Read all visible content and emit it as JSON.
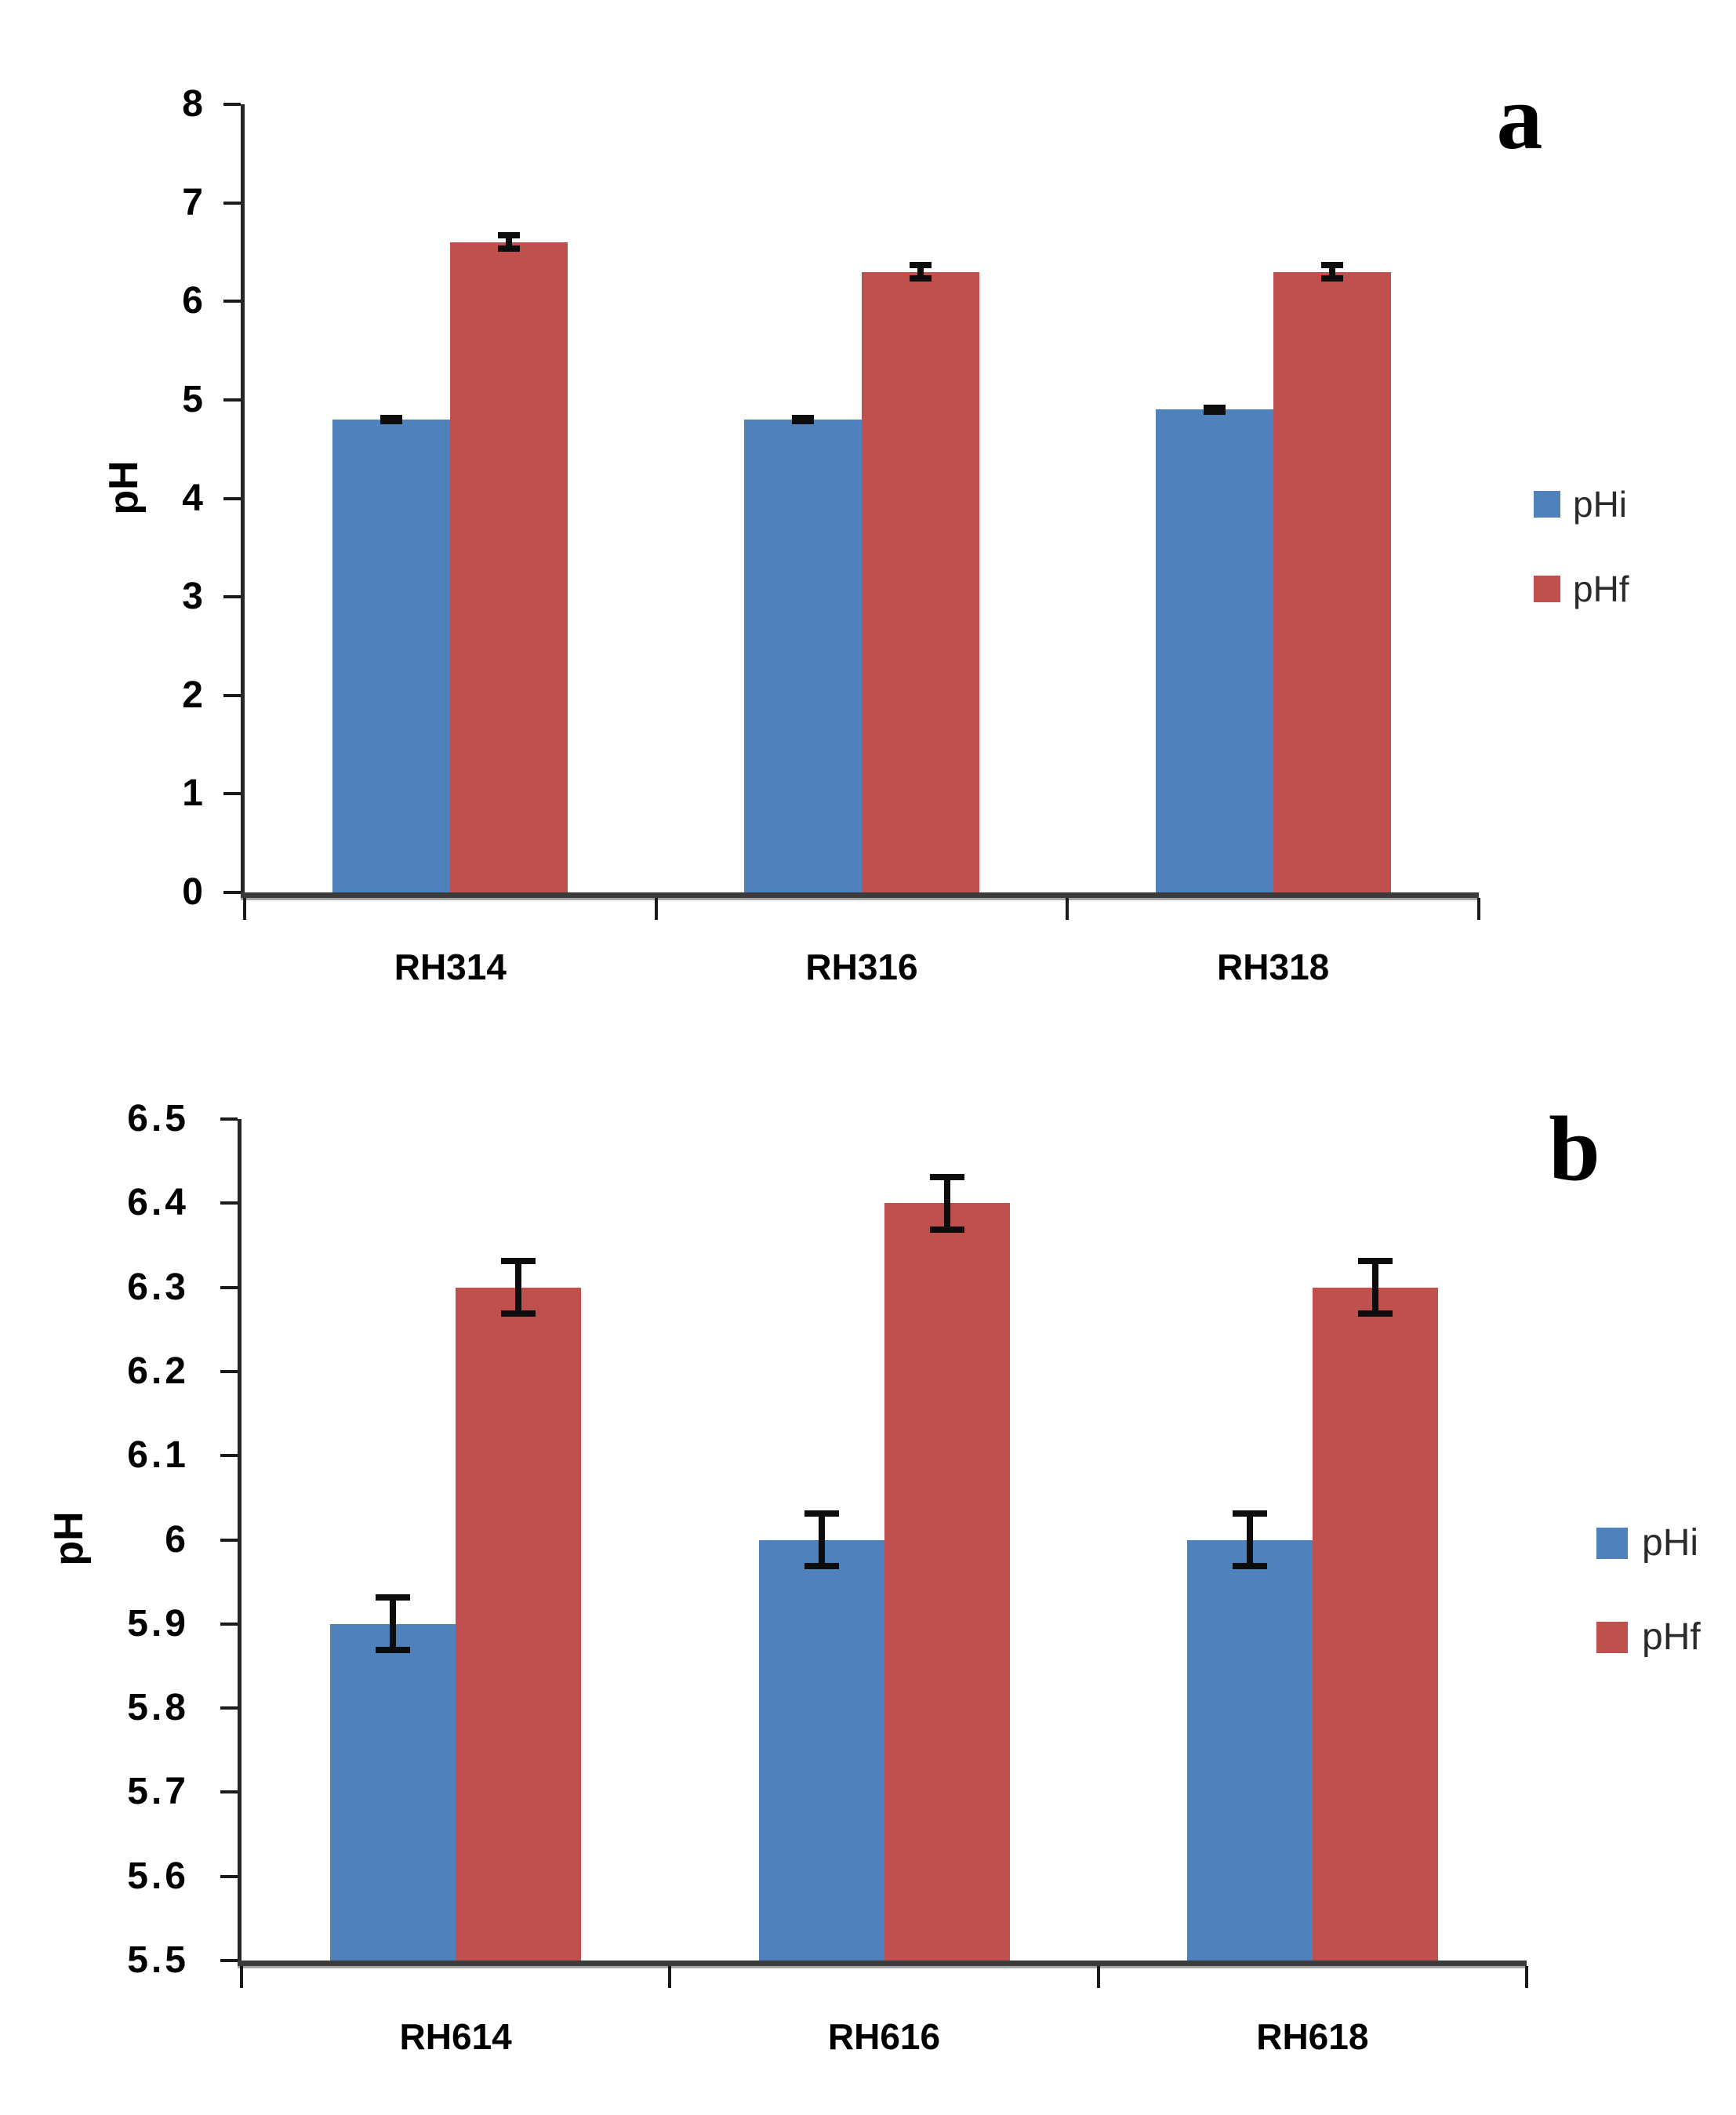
{
  "figure": {
    "background": "#ffffff"
  },
  "chart_data": [
    {
      "type": "bar",
      "panel_label": "a",
      "title": "",
      "xlabel": "",
      "ylabel": "pH",
      "categories": [
        "RH314",
        "RH316",
        "RH318"
      ],
      "series": [
        {
          "name": "pHi",
          "color": "#4F81BD",
          "values": [
            4.8,
            4.8,
            4.9
          ],
          "errors": [
            0.05,
            0.05,
            0.05
          ]
        },
        {
          "name": "pHf",
          "color": "#C0504D",
          "values": [
            6.6,
            6.3,
            6.3
          ],
          "errors": [
            0.1,
            0.1,
            0.1
          ]
        }
      ],
      "ylim": [
        0,
        8
      ],
      "yticks": [
        {
          "v": 8,
          "label": "8"
        },
        {
          "v": 7,
          "label": "7"
        },
        {
          "v": 6,
          "label": "6"
        },
        {
          "v": 5,
          "label": "5"
        },
        {
          "v": 4,
          "label": "4"
        },
        {
          "v": 3,
          "label": "3"
        },
        {
          "v": 2,
          "label": "2"
        },
        {
          "v": 1,
          "label": "1"
        },
        {
          "v": 0,
          "label": "0"
        }
      ],
      "grid": false,
      "error_bars": true,
      "legend_position": "right"
    },
    {
      "type": "bar",
      "panel_label": "b",
      "title": "",
      "xlabel": "",
      "ylabel": "pH",
      "categories": [
        "RH614",
        "RH616",
        "RH618"
      ],
      "series": [
        {
          "name": "pHi",
          "color": "#4F81BD",
          "values": [
            5.9,
            6.0,
            6.0
          ],
          "errors": [
            0.035,
            0.035,
            0.035
          ]
        },
        {
          "name": "pHf",
          "color": "#C0504D",
          "values": [
            6.3,
            6.4,
            6.3
          ],
          "errors": [
            0.035,
            0.035,
            0.035
          ]
        }
      ],
      "ylim": [
        5.5,
        6.5
      ],
      "yticks": [
        {
          "v": 6.5,
          "label": "6.5"
        },
        {
          "v": 6.4,
          "label": "6.4"
        },
        {
          "v": 6.3,
          "label": "6.3"
        },
        {
          "v": 6.2,
          "label": "6.2"
        },
        {
          "v": 6.1,
          "label": "6.1"
        },
        {
          "v": 6.0,
          "label": "6"
        },
        {
          "v": 5.9,
          "label": "5.9"
        },
        {
          "v": 5.8,
          "label": "5.8"
        },
        {
          "v": 5.7,
          "label": "5.7"
        },
        {
          "v": 5.6,
          "label": "5.6"
        },
        {
          "v": 5.5,
          "label": "5.5"
        }
      ],
      "grid": false,
      "error_bars": true,
      "legend_position": "right"
    }
  ]
}
